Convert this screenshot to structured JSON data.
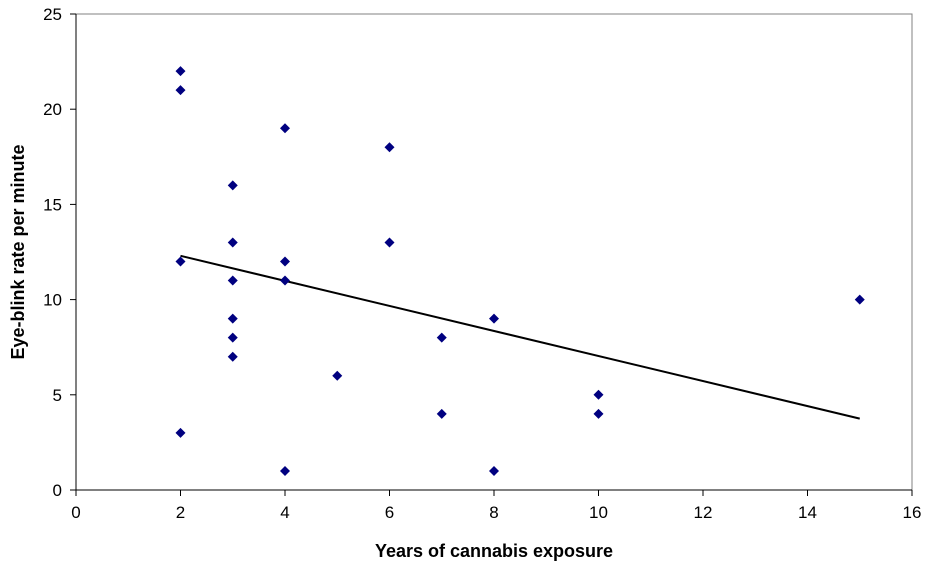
{
  "chart_data": {
    "type": "scatter",
    "title": "",
    "xlabel": "Years of cannabis exposure",
    "ylabel": "Eye-blink rate per minute",
    "xlim": [
      0,
      16
    ],
    "ylim": [
      0,
      25
    ],
    "x_ticks": [
      0,
      2,
      4,
      6,
      8,
      10,
      12,
      14,
      16
    ],
    "y_ticks": [
      0,
      5,
      10,
      15,
      20,
      25
    ],
    "grid": false,
    "legend": "none",
    "marker": "diamond",
    "colors": {
      "points": "#000080",
      "trendline": "#000000",
      "axis": "#000000"
    },
    "series": [
      {
        "points": [
          {
            "x": 2,
            "y": 22
          },
          {
            "x": 2,
            "y": 21
          },
          {
            "x": 2,
            "y": 12
          },
          {
            "x": 2,
            "y": 3
          },
          {
            "x": 3,
            "y": 16
          },
          {
            "x": 3,
            "y": 13
          },
          {
            "x": 3,
            "y": 11
          },
          {
            "x": 3,
            "y": 9
          },
          {
            "x": 3,
            "y": 8
          },
          {
            "x": 3,
            "y": 7
          },
          {
            "x": 4,
            "y": 19
          },
          {
            "x": 4,
            "y": 12
          },
          {
            "x": 4,
            "y": 11
          },
          {
            "x": 4,
            "y": 1
          },
          {
            "x": 5,
            "y": 6
          },
          {
            "x": 6,
            "y": 18
          },
          {
            "x": 6,
            "y": 13
          },
          {
            "x": 7,
            "y": 8
          },
          {
            "x": 7,
            "y": 4
          },
          {
            "x": 8,
            "y": 9
          },
          {
            "x": 8,
            "y": 1
          },
          {
            "x": 10,
            "y": 5
          },
          {
            "x": 10,
            "y": 4
          },
          {
            "x": 15,
            "y": 10
          }
        ]
      }
    ],
    "trendline": {
      "type": "linear",
      "start": {
        "x": 2,
        "y": 12.3
      },
      "end": {
        "x": 15,
        "y": 3.75
      }
    }
  }
}
